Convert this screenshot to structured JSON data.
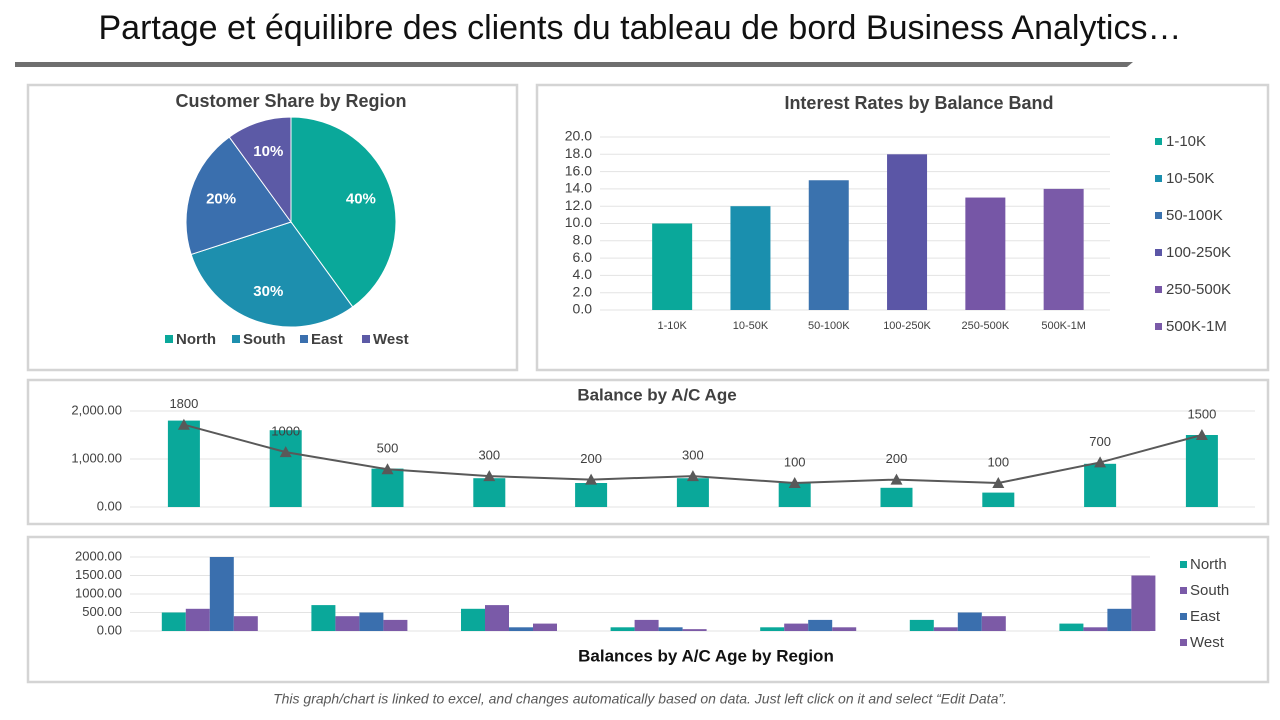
{
  "title": "Partage et équilibre des clients du tableau de bord Business Analytics…",
  "footer": "This graph/chart is linked to excel, and changes automatically based on data. Just left click on it and select “Edit Data”.",
  "chart_data": [
    {
      "type": "pie",
      "title": "Customer Share by Region",
      "categories": [
        "North",
        "South",
        "East",
        "West"
      ],
      "values": [
        40,
        30,
        20,
        10
      ],
      "value_labels": [
        "40%",
        "30%",
        "20%",
        "10%"
      ],
      "colors": [
        "#0aa89a",
        "#1d8fae",
        "#3a6fae",
        "#5c5aa6"
      ],
      "legend": "bottom"
    },
    {
      "type": "bar",
      "title": "Interest Rates by Balance Band",
      "categories": [
        "1-10K",
        "10-50K",
        "50-100K",
        "100-250K",
        "250-500K",
        "500K-1M"
      ],
      "values": [
        10,
        12,
        15,
        18,
        13,
        14
      ],
      "colors": [
        "#0aa89a",
        "#1a8fae",
        "#3a72ae",
        "#5b56a6",
        "#7656a6",
        "#7a5aa8"
      ],
      "ylim": [
        0,
        20
      ],
      "yticks": [
        {
          "value": 0,
          "label": "0.0"
        },
        {
          "value": 2,
          "label": "2.0"
        },
        {
          "value": 4,
          "label": "4.0"
        },
        {
          "value": 6,
          "label": "6.0"
        },
        {
          "value": 8,
          "label": "8.0"
        },
        {
          "value": 10,
          "label": "10.0"
        },
        {
          "value": 12,
          "label": "12.0"
        },
        {
          "value": 14,
          "label": "14.0"
        },
        {
          "value": 16,
          "label": "16.0"
        },
        {
          "value": 18,
          "label": "18.0"
        },
        {
          "value": 20,
          "label": "20.0"
        }
      ],
      "grid": true,
      "legend": "right"
    },
    {
      "type": "bar-line",
      "title": "Balance by A/C Age",
      "series": [
        {
          "type": "bar",
          "color": "#0aa89a",
          "values": [
            1800,
            1600,
            800,
            600,
            500,
            600,
            500,
            400,
            300,
            900,
            1500
          ]
        },
        {
          "type": "line",
          "axis": "y2",
          "color": "#595959",
          "values": [
            1800,
            1000,
            500,
            300,
            200,
            300,
            100,
            200,
            100,
            700,
            1500
          ]
        }
      ],
      "ylim": [
        0,
        2000
      ],
      "yticks": [
        {
          "value": 0,
          "label": "0.00"
        },
        {
          "value": 1000,
          "label": "1,000.00"
        },
        {
          "value": 2000,
          "label": "2,000.00"
        }
      ],
      "y2lim": [
        -600,
        2200
      ],
      "grid": true
    },
    {
      "type": "grouped-bar",
      "title": "Balances by A/C Age by Region",
      "series": [
        {
          "name": "North",
          "color": "#0aa89a",
          "values": [
            500,
            700,
            600,
            100,
            100,
            300,
            200
          ]
        },
        {
          "name": "South",
          "color": "#7a5aa8",
          "values": [
            600,
            400,
            700,
            300,
            200,
            100,
            100
          ]
        },
        {
          "name": "East",
          "color": "#3a6fae",
          "values": [
            2000,
            500,
            100,
            100,
            300,
            500,
            600
          ]
        },
        {
          "name": "West",
          "color": "#7c5aa6",
          "values": [
            400,
            300,
            200,
            50,
            100,
            400,
            1500
          ]
        }
      ],
      "ylim": [
        0,
        2000
      ],
      "yticks": [
        {
          "value": 0,
          "label": "0.00"
        },
        {
          "value": 500,
          "label": "500.00"
        },
        {
          "value": 1000,
          "label": "1000.00"
        },
        {
          "value": 1500,
          "label": "1500.00"
        },
        {
          "value": 2000,
          "label": "2000.00"
        }
      ],
      "grid": true,
      "legend": "right"
    }
  ]
}
